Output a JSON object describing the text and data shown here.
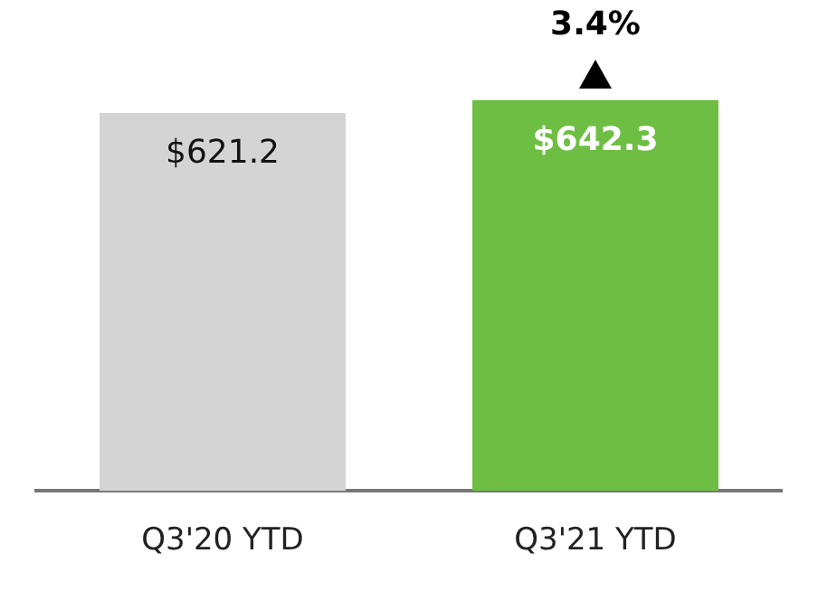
{
  "chart_data": {
    "type": "bar",
    "categories": [
      "Q3'20 YTD",
      "Q3'21 YTD"
    ],
    "values": [
      621.2,
      642.3
    ],
    "colors": [
      "#d4d4d4",
      "#6fbe44"
    ],
    "value_labels": [
      "$621.2",
      "$642.3"
    ],
    "annotations": [
      {
        "text": "3.4%",
        "x": "Q3'21 YTD",
        "y": 642.3
      }
    ],
    "tick_labels": "x",
    "grid": false,
    "legend": false
  }
}
